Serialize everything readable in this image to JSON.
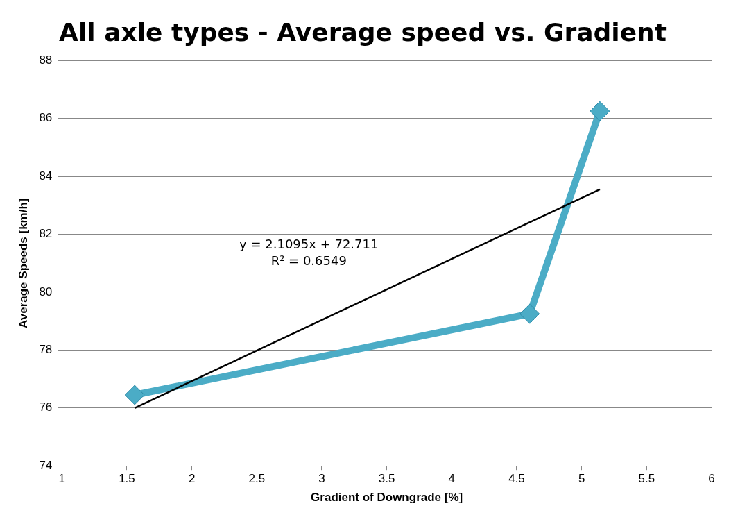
{
  "chart_data": {
    "type": "line",
    "title": "All axle types - Average speed vs. Gradient",
    "xlabel": "Gradient of Downgrade [%]",
    "ylabel": "Average Speeds [km/h]",
    "xlim": [
      1,
      6
    ],
    "xticks": [
      1,
      1.5,
      2,
      2.5,
      3,
      3.5,
      4,
      4.5,
      5,
      5.5,
      6
    ],
    "ylim": [
      74,
      88
    ],
    "yticks": [
      74,
      76,
      78,
      80,
      82,
      84,
      86,
      88
    ],
    "grid": "y",
    "legend": false,
    "marker": "diamond",
    "line_style": "solid",
    "series": [
      {
        "color": "#4bacc6",
        "x": [
          1.56,
          4.6,
          5.14
        ],
        "values": [
          76.45,
          79.25,
          86.25
        ]
      },
      {
        "type": "line",
        "color": "#000000",
        "marker": "none",
        "x": [
          1.56,
          5.14
        ],
        "values": [
          76.0,
          83.55
        ]
      }
    ],
    "annotations": [
      "y = 2.1095x + 72.711",
      "R² = 0.6549"
    ]
  }
}
